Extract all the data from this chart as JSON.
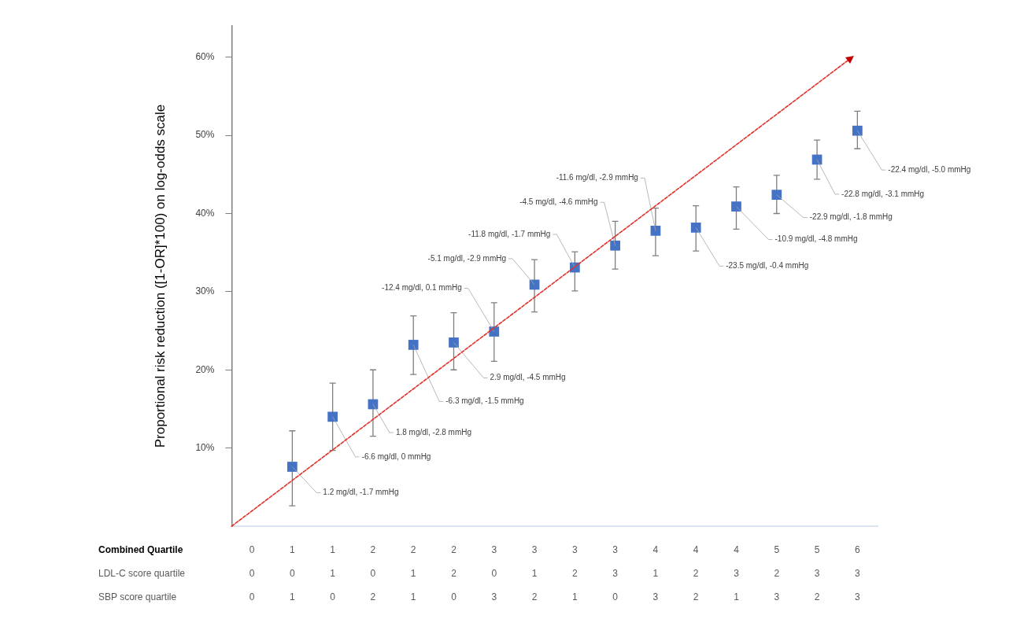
{
  "chart_data": {
    "type": "scatter",
    "ylabel": "Proportional risk reduction ([1-OR]*100) on log-odds scale",
    "categories": [
      "0\n0\n0",
      "1\n0\n1",
      "1\n1\n0",
      "2\n0\n2",
      "2\n1\n1",
      "2\n2\n0",
      "3\n0\n3",
      "3\n1\n2",
      "3\n2\n1",
      "3\n3\n0",
      "4\n1\n3",
      "4\n2\n2",
      "4\n3\n1",
      "5\n2\n3",
      "5\n3\n2",
      "6\n3\n3"
    ],
    "series": [
      {
        "color": "#4472c4",
        "values": [
          null,
          7.6,
          14.0,
          15.6,
          23.2,
          23.5,
          24.9,
          30.9,
          33.1,
          35.9,
          37.8,
          38.2,
          40.9,
          42.4,
          46.9,
          50.6
        ],
        "errors": [
          null,
          [
            2.6,
            12.2
          ],
          [
            9.7,
            18.3
          ],
          [
            11.5,
            20.0
          ],
          [
            19.4,
            26.9
          ],
          [
            20.0,
            27.3
          ],
          [
            21.1,
            28.6
          ],
          [
            27.4,
            34.1
          ],
          [
            30.1,
            35.1
          ],
          [
            32.9,
            39.0
          ],
          [
            34.6,
            40.7
          ],
          [
            35.2,
            41.0
          ],
          [
            38.0,
            43.4
          ],
          [
            40.0,
            44.9
          ],
          [
            44.4,
            49.4
          ],
          [
            48.3,
            53.1
          ]
        ]
      }
    ],
    "ylim": [
      0,
      64
    ],
    "yticks": [
      {
        "value": 10,
        "label": "10%"
      },
      {
        "value": 20,
        "label": "20%"
      },
      {
        "value": 30,
        "label": "30%"
      },
      {
        "value": 40,
        "label": "40%"
      },
      {
        "value": 50,
        "label": "50%"
      },
      {
        "value": 60,
        "label": "60%"
      }
    ],
    "marker": "square",
    "grid": false,
    "legend": false,
    "annotations": [
      "Combined Quartile",
      "LDL-C score quartile",
      "SBP score quartile",
      "1.2 mg/dl, -1.7 mmHg",
      "-6.6 mg/dl, 0 mmHg",
      "1.8 mg/dl, -2.8 mmHg",
      "-6.3 mg/dl, -1.5 mmHg",
      "2.9 mg/dl, -4.5 mmHg",
      "-12.4 mg/dl, 0.1 mmHg",
      "-5.1 mg/dl, -2.9 mmHg",
      "-11.8 mg/dl, -1.7 mmHg",
      "-4.5 mg/dl, -4.6 mmHg",
      "-11.6 mg/dl, -2.9 mmHg",
      "-23.5 mg/dl, -0.4 mmHg",
      "-10.9 mg/dl, -4.8 mmHg",
      "-22.9 mg/dl, -1.8 mmHg",
      "-22.8 mg/dl, -3.1 mmHg",
      "-22.4 mg/dl, -5.0 mmHg"
    ]
  }
}
